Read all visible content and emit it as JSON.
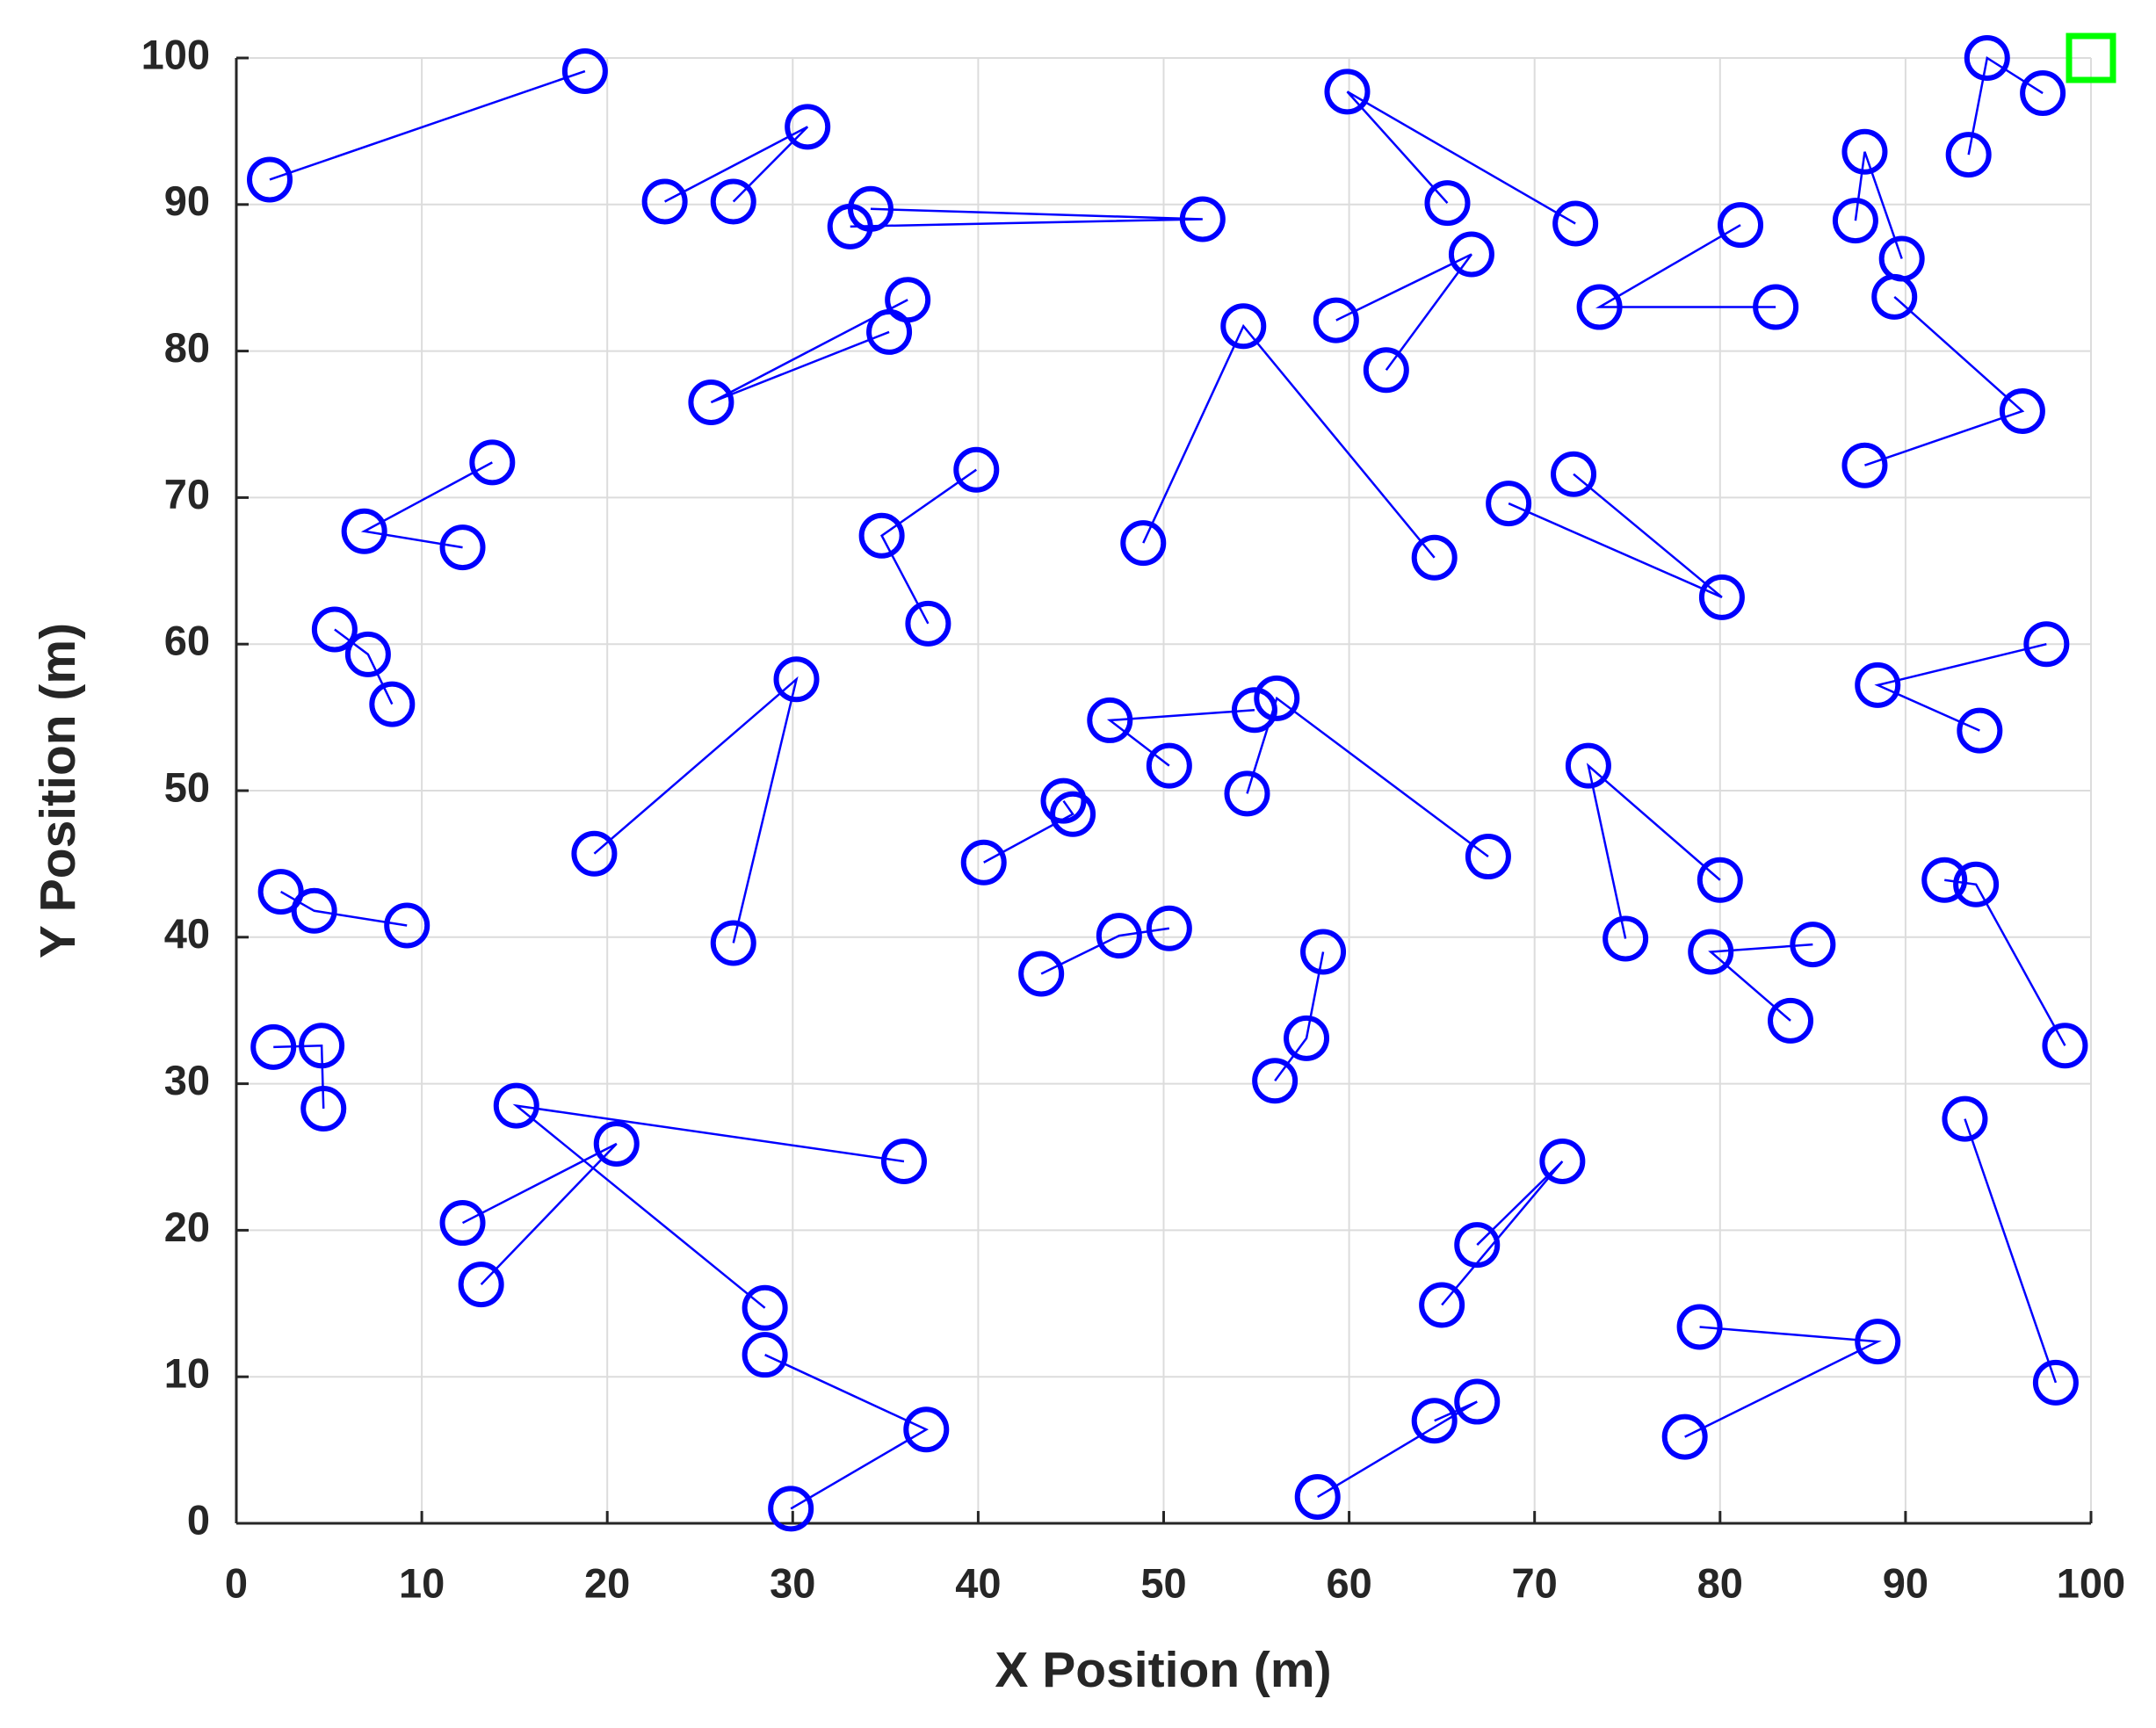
{
  "chart_data": {
    "type": "scatter",
    "xlabel": "X Position (m)",
    "ylabel": "Y Position (m)",
    "xlim": [
      0,
      100
    ],
    "ylim": [
      0,
      100
    ],
    "xticks": [
      0,
      10,
      20,
      30,
      40,
      50,
      60,
      70,
      80,
      90,
      100
    ],
    "yticks": [
      0,
      10,
      20,
      30,
      40,
      50,
      60,
      70,
      80,
      90,
      100
    ],
    "grid": true,
    "series": [
      {
        "color": "#0000ff",
        "x": [
          1.8,
          18.8
        ],
        "y": [
          91.7,
          99.1
        ]
      },
      {
        "color": "#0000ff",
        "x": [
          23.1,
          30.8,
          26.8
        ],
        "y": [
          90.2,
          95.3,
          90.2
        ]
      },
      {
        "color": "#0000ff",
        "x": [
          33.1,
          52.1,
          34.2
        ],
        "y": [
          88.5,
          89.0,
          89.7
        ]
      },
      {
        "color": "#0000ff",
        "x": [
          35.2,
          25.6,
          36.2
        ],
        "y": [
          81.3,
          76.5,
          83.5
        ]
      },
      {
        "color": "#0000ff",
        "x": [
          72.2,
          59.9,
          65.3
        ],
        "y": [
          88.7,
          97.7,
          90.1
        ]
      },
      {
        "color": "#0000ff",
        "x": [
          59.3,
          66.6,
          62.0
        ],
        "y": [
          82.1,
          86.6,
          78.7
        ]
      },
      {
        "color": "#0000ff",
        "x": [
          48.9,
          54.3,
          64.6
        ],
        "y": [
          66.9,
          81.7,
          65.9
        ]
      },
      {
        "color": "#0000ff",
        "x": [
          83.0,
          73.5,
          81.1
        ],
        "y": [
          83.0,
          83.0,
          88.6
        ]
      },
      {
        "color": "#0000ff",
        "x": [
          87.3,
          87.8,
          89.8
        ],
        "y": [
          88.9,
          93.6,
          86.3
        ]
      },
      {
        "color": "#0000ff",
        "x": [
          89.4,
          96.3,
          87.8
        ],
        "y": [
          83.7,
          75.9,
          72.2
        ]
      },
      {
        "color": "#0000ff",
        "x": [
          93.4,
          94.4,
          97.4
        ],
        "y": [
          93.4,
          100.0,
          97.6
        ]
      },
      {
        "color": "#0000ff",
        "x": [
          12.2,
          6.9,
          13.8
        ],
        "y": [
          66.6,
          67.7,
          72.4
        ]
      },
      {
        "color": "#0000ff",
        "x": [
          37.3,
          34.8,
          39.9
        ],
        "y": [
          61.4,
          67.4,
          71.9
        ]
      },
      {
        "color": "#0000ff",
        "x": [
          68.6,
          80.1,
          72.1
        ],
        "y": [
          69.6,
          63.2,
          71.6
        ]
      },
      {
        "color": "#0000ff",
        "x": [
          5.3,
          7.1,
          8.4
        ],
        "y": [
          61.0,
          59.3,
          55.9
        ]
      },
      {
        "color": "#0000ff",
        "x": [
          26.8,
          30.2,
          19.3
        ],
        "y": [
          39.6,
          57.6,
          45.7
        ]
      },
      {
        "color": "#0000ff",
        "x": [
          94.0,
          88.5,
          97.6
        ],
        "y": [
          54.1,
          57.2,
          60.0
        ]
      },
      {
        "color": "#0000ff",
        "x": [
          50.3,
          47.1,
          54.9
        ],
        "y": [
          51.7,
          54.8,
          55.5
        ]
      },
      {
        "color": "#0000ff",
        "x": [
          54.5,
          56.1,
          67.5
        ],
        "y": [
          49.8,
          56.3,
          45.5
        ]
      },
      {
        "color": "#0000ff",
        "x": [
          74.9,
          72.9,
          80.0
        ],
        "y": [
          39.9,
          51.7,
          43.9
        ]
      },
      {
        "color": "#0000ff",
        "x": [
          40.3,
          45.1,
          44.6
        ],
        "y": [
          45.1,
          48.4,
          49.3
        ]
      },
      {
        "color": "#0000ff",
        "x": [
          2.4,
          4.2,
          9.2
        ],
        "y": [
          43.1,
          41.8,
          40.8
        ]
      },
      {
        "color": "#0000ff",
        "x": [
          92.1,
          93.8,
          98.6
        ],
        "y": [
          43.9,
          43.6,
          32.6
        ]
      },
      {
        "color": "#0000ff",
        "x": [
          43.4,
          47.6,
          50.3
        ],
        "y": [
          37.5,
          40.1,
          40.6
        ]
      },
      {
        "color": "#0000ff",
        "x": [
          56.0,
          57.7,
          58.6
        ],
        "y": [
          30.2,
          33.1,
          39.0
        ]
      },
      {
        "color": "#0000ff",
        "x": [
          85.0,
          79.5,
          83.8
        ],
        "y": [
          39.5,
          39.0,
          34.3
        ]
      },
      {
        "color": "#0000ff",
        "x": [
          2.0,
          4.6,
          4.7
        ],
        "y": [
          32.5,
          32.6,
          28.3
        ]
      },
      {
        "color": "#0000ff",
        "x": [
          36.0,
          15.1,
          28.5
        ],
        "y": [
          24.7,
          28.5,
          14.7
        ]
      },
      {
        "color": "#0000ff",
        "x": [
          12.2,
          20.5,
          13.2
        ],
        "y": [
          20.5,
          25.9,
          16.3
        ]
      },
      {
        "color": "#0000ff",
        "x": [
          65.0,
          71.5,
          66.9
        ],
        "y": [
          14.9,
          24.7,
          19.0
        ]
      },
      {
        "color": "#0000ff",
        "x": [
          93.2,
          98.1
        ],
        "y": [
          27.6,
          9.6
        ]
      },
      {
        "color": "#0000ff",
        "x": [
          78.1,
          88.5,
          78.9
        ],
        "y": [
          5.9,
          12.4,
          13.4
        ]
      },
      {
        "color": "#0000ff",
        "x": [
          28.5,
          37.2,
          29.9
        ],
        "y": [
          11.5,
          6.4,
          1.0
        ]
      },
      {
        "color": "#0000ff",
        "x": [
          58.3,
          66.9,
          64.6
        ],
        "y": [
          1.8,
          8.3,
          7.0
        ]
      },
      {
        "color": "#00ff00",
        "marker": "square",
        "x": [
          100
        ],
        "y": [
          100
        ]
      }
    ]
  }
}
